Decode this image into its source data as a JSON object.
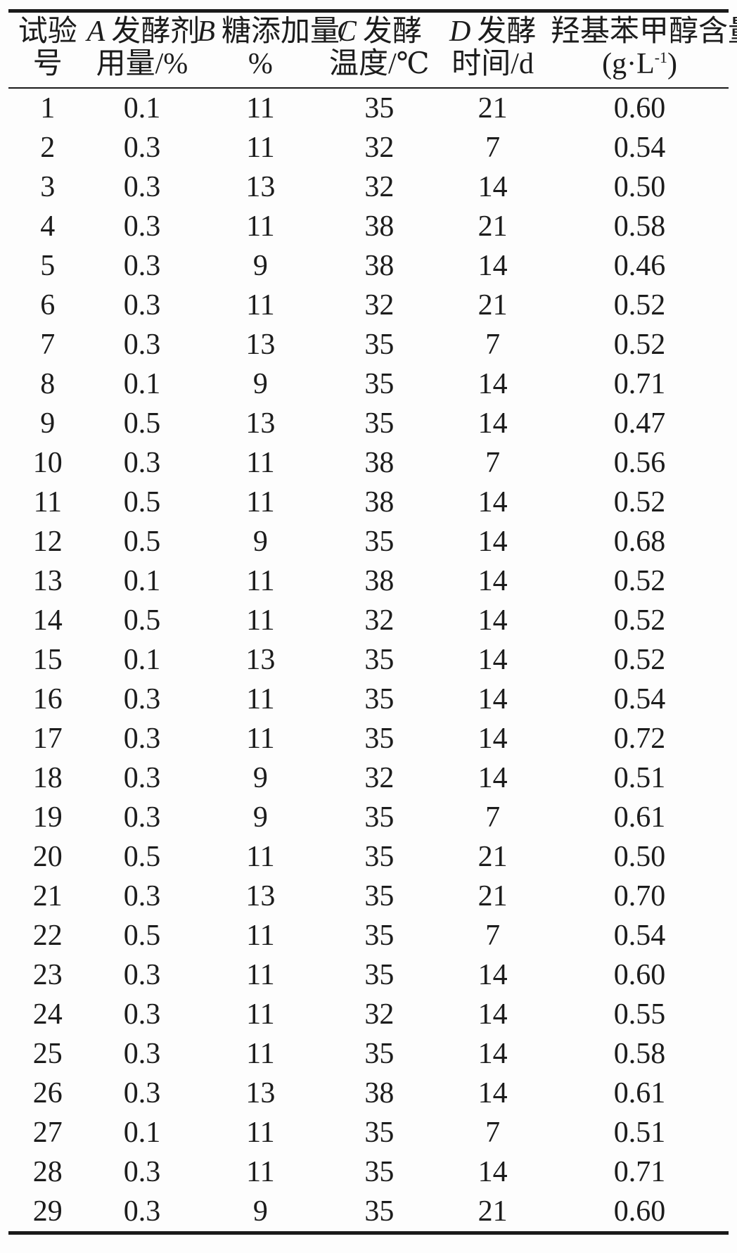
{
  "colors": {
    "text": "#1c1c1c",
    "rule": "#1a1a1a",
    "background": "#fdfdfd"
  },
  "table": {
    "columns": [
      {
        "id": "trial-number",
        "line1": "试验",
        "line2": "号"
      },
      {
        "id": "factor-a",
        "letter": "A",
        "line1": "发酵剂",
        "line2": "用量/%"
      },
      {
        "id": "factor-b",
        "letter": "B",
        "line1": "糖添加量/",
        "line2": "%"
      },
      {
        "id": "factor-c",
        "letter": "C",
        "line1": "发酵",
        "line2": "温度/℃"
      },
      {
        "id": "factor-d",
        "letter": "D",
        "line1": "发酵",
        "line2": "时间/d"
      },
      {
        "id": "result",
        "line1": "羟基苯甲醇含量/",
        "unit_pre": "(g·L",
        "unit_sup": "-1",
        "unit_post": ")"
      }
    ],
    "rows": [
      [
        "1",
        "0.1",
        "11",
        "35",
        "21",
        "0.60"
      ],
      [
        "2",
        "0.3",
        "11",
        "32",
        "7",
        "0.54"
      ],
      [
        "3",
        "0.3",
        "13",
        "32",
        "14",
        "0.50"
      ],
      [
        "4",
        "0.3",
        "11",
        "38",
        "21",
        "0.58"
      ],
      [
        "5",
        "0.3",
        "9",
        "38",
        "14",
        "0.46"
      ],
      [
        "6",
        "0.3",
        "11",
        "32",
        "21",
        "0.52"
      ],
      [
        "7",
        "0.3",
        "13",
        "35",
        "7",
        "0.52"
      ],
      [
        "8",
        "0.1",
        "9",
        "35",
        "14",
        "0.71"
      ],
      [
        "9",
        "0.5",
        "13",
        "35",
        "14",
        "0.47"
      ],
      [
        "10",
        "0.3",
        "11",
        "38",
        "7",
        "0.56"
      ],
      [
        "11",
        "0.5",
        "11",
        "38",
        "14",
        "0.52"
      ],
      [
        "12",
        "0.5",
        "9",
        "35",
        "14",
        "0.68"
      ],
      [
        "13",
        "0.1",
        "11",
        "38",
        "14",
        "0.52"
      ],
      [
        "14",
        "0.5",
        "11",
        "32",
        "14",
        "0.52"
      ],
      [
        "15",
        "0.1",
        "13",
        "35",
        "14",
        "0.52"
      ],
      [
        "16",
        "0.3",
        "11",
        "35",
        "14",
        "0.54"
      ],
      [
        "17",
        "0.3",
        "11",
        "35",
        "14",
        "0.72"
      ],
      [
        "18",
        "0.3",
        "9",
        "32",
        "14",
        "0.51"
      ],
      [
        "19",
        "0.3",
        "9",
        "35",
        "7",
        "0.61"
      ],
      [
        "20",
        "0.5",
        "11",
        "35",
        "21",
        "0.50"
      ],
      [
        "21",
        "0.3",
        "13",
        "35",
        "21",
        "0.70"
      ],
      [
        "22",
        "0.5",
        "11",
        "35",
        "7",
        "0.54"
      ],
      [
        "23",
        "0.3",
        "11",
        "35",
        "14",
        "0.60"
      ],
      [
        "24",
        "0.3",
        "11",
        "32",
        "14",
        "0.55"
      ],
      [
        "25",
        "0.3",
        "11",
        "35",
        "14",
        "0.58"
      ],
      [
        "26",
        "0.3",
        "13",
        "38",
        "14",
        "0.61"
      ],
      [
        "27",
        "0.1",
        "11",
        "35",
        "7",
        "0.51"
      ],
      [
        "28",
        "0.3",
        "11",
        "35",
        "14",
        "0.71"
      ],
      [
        "29",
        "0.3",
        "9",
        "35",
        "21",
        "0.60"
      ]
    ]
  }
}
